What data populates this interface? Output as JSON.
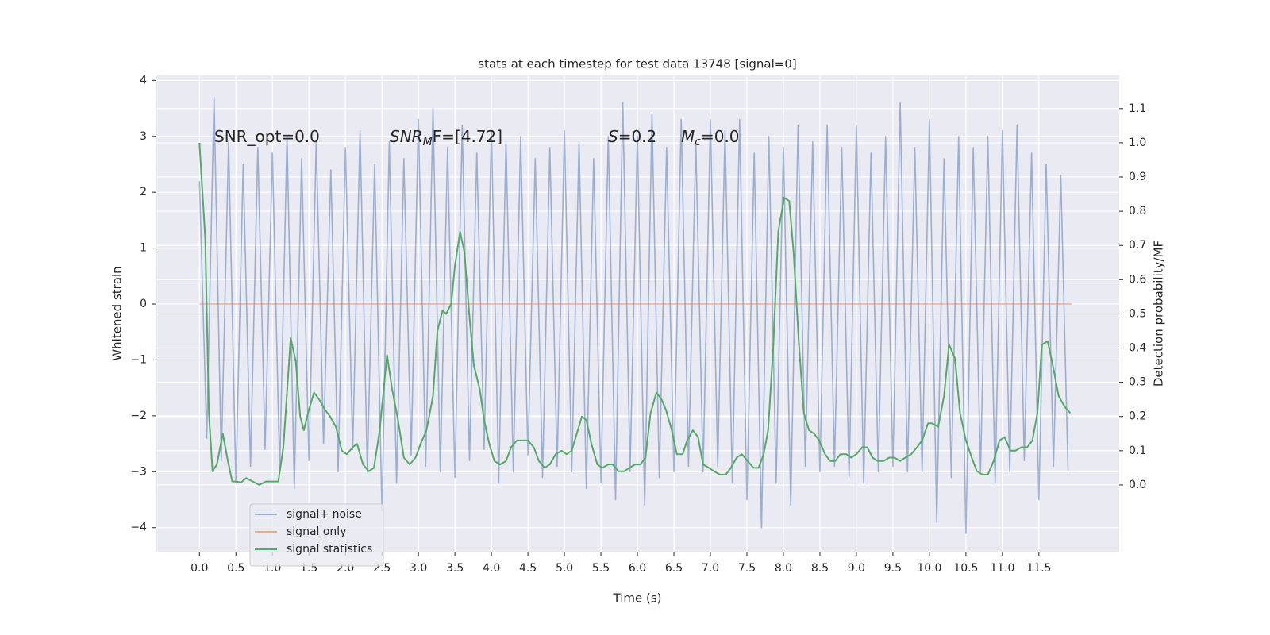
{
  "chart_data": {
    "type": "line",
    "title": "stats at each timestep for test data 13748 [signal=0]",
    "xlabel": "Time (s)",
    "ylabel": "Whitened strain",
    "y2label": "Detection probability/MF",
    "background": "#eaeaf2",
    "grid": true,
    "legend": "lower left",
    "xlim": [
      -0.59,
      12.6
    ],
    "ylim": [
      -4.43,
      4.09
    ],
    "y2lim": [
      -0.195,
      1.197
    ],
    "xticks": [
      {
        "value": 0,
        "label": "0.0"
      },
      0.5,
      {
        "value": 1,
        "label": "1.0"
      },
      1.5,
      {
        "value": 2,
        "label": "2.0"
      },
      2.5,
      {
        "value": 3,
        "label": "3.0"
      },
      3.5,
      {
        "value": 4,
        "label": "4.0"
      },
      4.5,
      {
        "value": 5,
        "label": "5.0"
      },
      5.5,
      {
        "value": 6,
        "label": "6.0"
      },
      6.5,
      {
        "value": 7,
        "label": "7.0"
      },
      7.5,
      {
        "value": 8,
        "label": "8.0"
      },
      8.5,
      {
        "value": 9,
        "label": "9.0"
      },
      9.5,
      {
        "value": 10,
        "label": "10.0"
      },
      10.5,
      {
        "value": 11,
        "label": "11.0"
      },
      11.5
    ],
    "yticks": [
      {
        "value": -4,
        "label": "−4"
      },
      {
        "value": -3,
        "label": "−3"
      },
      {
        "value": -2,
        "label": "−2"
      },
      {
        "value": -1,
        "label": "−1"
      },
      0,
      1,
      2,
      3,
      4
    ],
    "y2ticks": [
      {
        "value": 0,
        "label": "0.0"
      },
      0.1,
      0.2,
      0.3,
      0.4,
      0.5,
      0.6,
      0.7,
      0.8,
      0.9,
      {
        "value": 1,
        "label": "1.0"
      },
      1.1
    ],
    "annotations": [
      [
        {
          "text": "SNR_opt=0.0"
        }
      ],
      [
        {
          "text": "SNR",
          "italic": true
        },
        {
          "text": "M",
          "italic": true,
          "sub": true
        },
        {
          "text": "F=[4.72]"
        }
      ],
      [
        {
          "text": "S",
          "italic": true
        },
        {
          "text": "=0.2"
        }
      ],
      [
        {
          "text": "M",
          "italic": true
        },
        {
          "text": "c",
          "italic": true,
          "sub": true
        },
        {
          "text": "=0.0"
        }
      ]
    ],
    "series": [
      {
        "name": "signal+ noise",
        "color": "#4c72b0",
        "opacity": 0.5,
        "axis": "y",
        "x": [
          0.0,
          0.1,
          0.2,
          0.3,
          0.4,
          0.5,
          0.6,
          0.7,
          0.8,
          0.9,
          1.0,
          1.1,
          1.2,
          1.3,
          1.4,
          1.5,
          1.6,
          1.7,
          1.8,
          1.9,
          2.0,
          2.1,
          2.2,
          2.3,
          2.4,
          2.5,
          2.6,
          2.7,
          2.8,
          2.9,
          3.0,
          3.1,
          3.2,
          3.3,
          3.4,
          3.5,
          3.6,
          3.7,
          3.8,
          3.9,
          4.0,
          4.1,
          4.2,
          4.3,
          4.4,
          4.5,
          4.6,
          4.7,
          4.8,
          4.9,
          5.0,
          5.1,
          5.2,
          5.3,
          5.4,
          5.5,
          5.6,
          5.7,
          5.8,
          5.9,
          6.0,
          6.1,
          6.2,
          6.3,
          6.4,
          6.5,
          6.6,
          6.7,
          6.8,
          6.9,
          7.0,
          7.1,
          7.2,
          7.3,
          7.4,
          7.5,
          7.6,
          7.7,
          7.8,
          7.9,
          8.0,
          8.1,
          8.2,
          8.3,
          8.4,
          8.5,
          8.6,
          8.7,
          8.8,
          8.9,
          9.0,
          9.1,
          9.2,
          9.3,
          9.4,
          9.5,
          9.6,
          9.7,
          9.8,
          9.9,
          10.0,
          10.1,
          10.2,
          10.3,
          10.4,
          10.5,
          10.6,
          10.7,
          10.8,
          10.9,
          11.0,
          11.1,
          11.2,
          11.3,
          11.4,
          11.5,
          11.6,
          11.7,
          11.8,
          11.9
        ],
        "values": [
          2.2,
          -2.4,
          3.7,
          -2.8,
          2.9,
          -3.2,
          2.5,
          -2.9,
          2.8,
          -2.6,
          2.7,
          -3.0,
          3.0,
          -3.3,
          2.6,
          -2.8,
          2.9,
          -2.5,
          2.4,
          -3.0,
          2.8,
          -2.6,
          3.1,
          -3.0,
          2.5,
          -3.7,
          2.9,
          -3.2,
          2.6,
          -2.7,
          3.3,
          -2.9,
          3.5,
          -3.0,
          2.8,
          -3.1,
          3.2,
          -2.8,
          2.7,
          -2.6,
          3.1,
          -3.2,
          2.9,
          -3.0,
          3.0,
          -2.7,
          2.6,
          -3.1,
          2.8,
          -2.9,
          3.1,
          -3.0,
          2.9,
          -3.3,
          2.6,
          -3.2,
          3.0,
          -3.5,
          3.6,
          -3.0,
          3.0,
          -3.6,
          3.4,
          -3.1,
          2.8,
          -3.0,
          3.3,
          -2.9,
          2.9,
          -3.0,
          3.3,
          -2.9,
          3.1,
          -3.2,
          3.3,
          -3.5,
          2.7,
          -4.0,
          3.0,
          -3.2,
          2.8,
          -3.6,
          3.2,
          -2.9,
          2.9,
          -3.0,
          3.2,
          -2.9,
          2.8,
          -3.1,
          3.2,
          -3.2,
          2.7,
          -3.0,
          3.0,
          -2.9,
          3.6,
          -3.0,
          2.8,
          -3.0,
          3.3,
          -3.9,
          2.6,
          -3.1,
          3.0,
          -4.1,
          2.8,
          -3.0,
          3.0,
          -3.2,
          3.1,
          -3.0,
          3.2,
          -2.8,
          2.7,
          -3.5,
          2.5,
          -2.9,
          2.3,
          -3.0
        ]
      },
      {
        "name": "signal only",
        "color": "#dd8452",
        "opacity": 0.6,
        "axis": "y",
        "x": [
          0.0,
          11.95
        ],
        "values": [
          0,
          0
        ]
      },
      {
        "name": "signal statistics",
        "color": "#55a868",
        "opacity": 1,
        "axis": "y2",
        "x": [
          0.0,
          0.08,
          0.13,
          0.18,
          0.24,
          0.32,
          0.39,
          0.45,
          0.5,
          0.57,
          0.64,
          0.73,
          0.82,
          0.91,
          0.99,
          1.08,
          1.15,
          1.25,
          1.32,
          1.38,
          1.43,
          1.5,
          1.57,
          1.64,
          1.72,
          1.79,
          1.87,
          1.95,
          2.02,
          2.1,
          2.16,
          2.24,
          2.32,
          2.39,
          2.47,
          2.57,
          2.64,
          2.72,
          2.8,
          2.88,
          2.96,
          3.03,
          3.11,
          3.2,
          3.26,
          3.33,
          3.38,
          3.45,
          3.5,
          3.57,
          3.63,
          3.7,
          3.76,
          3.84,
          3.9,
          3.97,
          4.04,
          4.12,
          4.2,
          4.27,
          4.35,
          4.42,
          4.5,
          4.58,
          4.65,
          4.73,
          4.8,
          4.88,
          4.96,
          5.03,
          5.1,
          5.17,
          5.24,
          5.3,
          5.37,
          5.45,
          5.52,
          5.6,
          5.66,
          5.74,
          5.82,
          5.89,
          5.97,
          6.04,
          6.11,
          6.18,
          6.26,
          6.33,
          6.39,
          6.47,
          6.54,
          6.62,
          6.68,
          6.76,
          6.83,
          6.9,
          6.98,
          7.05,
          7.13,
          7.21,
          7.28,
          7.36,
          7.43,
          7.51,
          7.59,
          7.66,
          7.73,
          7.79,
          7.86,
          7.93,
          8.01,
          8.08,
          8.14,
          8.21,
          8.28,
          8.35,
          8.42,
          8.49,
          8.57,
          8.64,
          8.71,
          8.78,
          8.86,
          8.93,
          9.0,
          9.08,
          9.15,
          9.22,
          9.29,
          9.37,
          9.45,
          9.52,
          9.6,
          9.67,
          9.75,
          9.83,
          9.9,
          9.98,
          10.04,
          10.12,
          10.2,
          10.27,
          10.35,
          10.42,
          10.5,
          10.58,
          10.65,
          10.73,
          10.8,
          10.88,
          10.96,
          11.03,
          11.11,
          11.18,
          11.26,
          11.34,
          11.41,
          11.48,
          11.54,
          11.62,
          11.7,
          11.77,
          11.85,
          11.93
        ],
        "values": [
          1.0,
          0.72,
          0.21,
          0.04,
          0.06,
          0.15,
          0.07,
          0.01,
          0.01,
          0.007,
          0.02,
          0.01,
          0.0,
          0.01,
          0.01,
          0.01,
          0.11,
          0.43,
          0.36,
          0.2,
          0.16,
          0.22,
          0.27,
          0.25,
          0.22,
          0.2,
          0.17,
          0.1,
          0.09,
          0.11,
          0.12,
          0.06,
          0.04,
          0.05,
          0.16,
          0.38,
          0.28,
          0.19,
          0.08,
          0.06,
          0.08,
          0.12,
          0.16,
          0.26,
          0.45,
          0.51,
          0.5,
          0.53,
          0.64,
          0.74,
          0.68,
          0.49,
          0.35,
          0.28,
          0.19,
          0.12,
          0.07,
          0.06,
          0.07,
          0.11,
          0.13,
          0.13,
          0.13,
          0.11,
          0.07,
          0.05,
          0.06,
          0.09,
          0.1,
          0.09,
          0.1,
          0.15,
          0.2,
          0.19,
          0.12,
          0.06,
          0.05,
          0.06,
          0.06,
          0.04,
          0.04,
          0.05,
          0.06,
          0.06,
          0.08,
          0.21,
          0.27,
          0.25,
          0.22,
          0.16,
          0.09,
          0.09,
          0.13,
          0.16,
          0.14,
          0.06,
          0.05,
          0.04,
          0.03,
          0.03,
          0.05,
          0.08,
          0.09,
          0.07,
          0.05,
          0.05,
          0.09,
          0.16,
          0.4,
          0.74,
          0.84,
          0.83,
          0.68,
          0.42,
          0.21,
          0.16,
          0.15,
          0.13,
          0.09,
          0.07,
          0.07,
          0.09,
          0.09,
          0.08,
          0.09,
          0.11,
          0.11,
          0.08,
          0.07,
          0.07,
          0.08,
          0.08,
          0.07,
          0.08,
          0.09,
          0.11,
          0.13,
          0.18,
          0.18,
          0.17,
          0.26,
          0.41,
          0.37,
          0.21,
          0.13,
          0.08,
          0.04,
          0.03,
          0.03,
          0.07,
          0.13,
          0.14,
          0.1,
          0.1,
          0.11,
          0.11,
          0.13,
          0.21,
          0.41,
          0.42,
          0.34,
          0.26,
          0.23,
          0.21
        ]
      }
    ]
  }
}
